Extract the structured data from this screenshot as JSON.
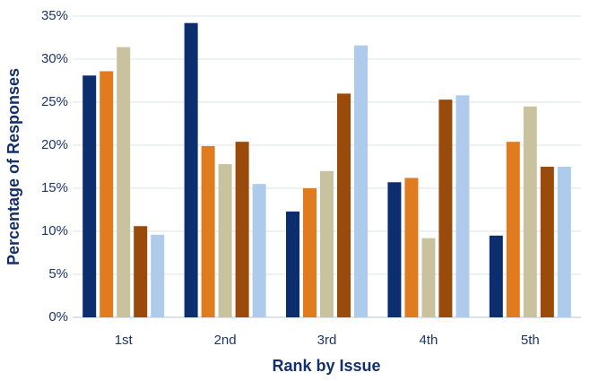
{
  "chart_data": {
    "type": "bar",
    "x_label": "Rank by Issue",
    "y_label": "Percentage of Responses",
    "categories": [
      "1st",
      "2nd",
      "3rd",
      "4th",
      "5th"
    ],
    "series": [
      {
        "color": "#0c2d6e",
        "values": [
          28.1,
          34.2,
          12.3,
          15.7,
          9.5
        ]
      },
      {
        "color": "#e07b20",
        "values": [
          28.6,
          19.9,
          15.0,
          16.2,
          20.4
        ]
      },
      {
        "color": "#c8c39e",
        "values": [
          31.4,
          17.8,
          17.0,
          9.2,
          24.5
        ]
      },
      {
        "color": "#9a4a0a",
        "values": [
          10.6,
          20.4,
          26.0,
          25.3,
          17.5
        ]
      },
      {
        "color": "#aecbeb",
        "values": [
          9.6,
          15.5,
          31.6,
          25.8,
          17.5
        ]
      }
    ],
    "ylim": [
      0,
      35
    ],
    "yticks": [
      {
        "value": 0,
        "label": "0%"
      },
      {
        "value": 5,
        "label": "5%"
      },
      {
        "value": 10,
        "label": "10%"
      },
      {
        "value": 15,
        "label": "15%"
      },
      {
        "value": 20,
        "label": "20%"
      },
      {
        "value": 25,
        "label": "25%"
      },
      {
        "value": 30,
        "label": "30%"
      },
      {
        "value": 35,
        "label": "35%"
      }
    ],
    "grid": true
  }
}
